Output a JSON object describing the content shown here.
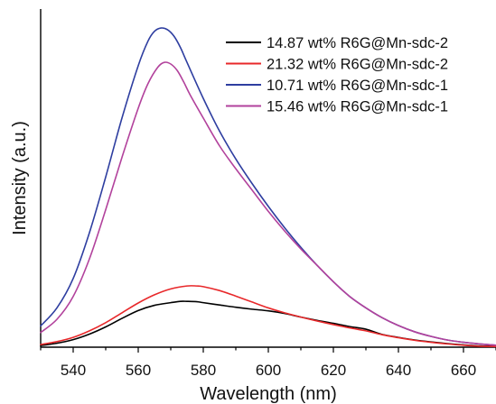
{
  "chart_data": {
    "type": "line",
    "title": "",
    "xlabel": "Wavelength (nm)",
    "ylabel": "Intensity (a.u.)",
    "xlim": [
      530,
      670
    ],
    "ylim": [
      0,
      100
    ],
    "y_ticks_visible": false,
    "x_ticks": [
      540,
      560,
      580,
      600,
      620,
      640,
      660
    ],
    "grid": false,
    "legend": {
      "position": "top-right"
    },
    "series": [
      {
        "name": "14.87 wt% R6G@Mn-sdc-2",
        "color": "#000000",
        "x": [
          530,
          535,
          540,
          545,
          550,
          555,
          560,
          565,
          570,
          573,
          575,
          578,
          580,
          585,
          590,
          595,
          600,
          605,
          610,
          615,
          620,
          625,
          630,
          635,
          640,
          645,
          650,
          655,
          660,
          665,
          670
        ],
        "y": [
          0.5,
          1.2,
          2.3,
          4.0,
          6.2,
          8.8,
          11.2,
          12.8,
          13.6,
          14.0,
          14.0,
          13.9,
          13.6,
          12.9,
          12.2,
          11.6,
          11.1,
          10.3,
          9.2,
          8.2,
          7.3,
          6.3,
          5.5,
          3.9,
          3.0,
          2.2,
          1.6,
          1.1,
          0.7,
          0.4,
          0.3
        ]
      },
      {
        "name": "21.32 wt% R6G@Mn-sdc-2",
        "color": "#e8282a",
        "x": [
          530,
          535,
          540,
          545,
          550,
          555,
          560,
          565,
          570,
          575,
          578,
          580,
          585,
          590,
          595,
          600,
          605,
          610,
          615,
          620,
          625,
          630,
          635,
          640,
          645,
          650,
          655,
          660,
          665,
          670
        ],
        "y": [
          0.8,
          1.7,
          3.0,
          5.0,
          7.5,
          10.5,
          13.5,
          16.0,
          17.8,
          18.7,
          18.7,
          18.5,
          17.3,
          15.6,
          13.8,
          12.0,
          10.5,
          9.2,
          8.0,
          6.9,
          5.9,
          5.0,
          3.8,
          2.9,
          2.1,
          1.5,
          1.0,
          0.6,
          0.3,
          0.2
        ]
      },
      {
        "name": "10.71 wt% R6G@Mn-sdc-1",
        "color": "#2e3ea0",
        "x": [
          530,
          535,
          540,
          545,
          550,
          555,
          560,
          563,
          565,
          567,
          569,
          571,
          573,
          575,
          580,
          585,
          590,
          595,
          600,
          605,
          610,
          615,
          620,
          625,
          630,
          635,
          640,
          645,
          650,
          655,
          660,
          665,
          670
        ],
        "y": [
          6.5,
          12.0,
          21.0,
          35.0,
          52.0,
          70.0,
          86.0,
          93.5,
          96.5,
          97.5,
          97.0,
          95.0,
          91.5,
          87.0,
          76.0,
          66.0,
          57.5,
          50.0,
          43.0,
          36.5,
          30.5,
          25.0,
          20.0,
          15.5,
          12.0,
          9.0,
          6.6,
          4.7,
          3.3,
          2.2,
          1.5,
          1.0,
          0.6
        ]
      },
      {
        "name": "15.46 wt% R6G@Mn-sdc-1",
        "color": "#b2429c",
        "x": [
          530,
          535,
          540,
          545,
          550,
          555,
          560,
          563,
          566,
          568,
          570,
          572,
          574,
          576,
          580,
          585,
          590,
          595,
          600,
          605,
          610,
          615,
          620,
          625,
          630,
          635,
          640,
          645,
          650,
          655,
          660,
          665,
          670
        ],
        "y": [
          4.5,
          8.5,
          15.5,
          27.0,
          42.0,
          58.0,
          73.0,
          80.5,
          85.5,
          87.0,
          86.5,
          84.5,
          81.0,
          77.0,
          70.0,
          61.5,
          54.5,
          48.0,
          41.5,
          35.5,
          30.0,
          25.0,
          20.0,
          15.5,
          12.0,
          9.0,
          6.6,
          4.7,
          3.3,
          2.2,
          1.5,
          1.0,
          0.6
        ]
      }
    ]
  }
}
